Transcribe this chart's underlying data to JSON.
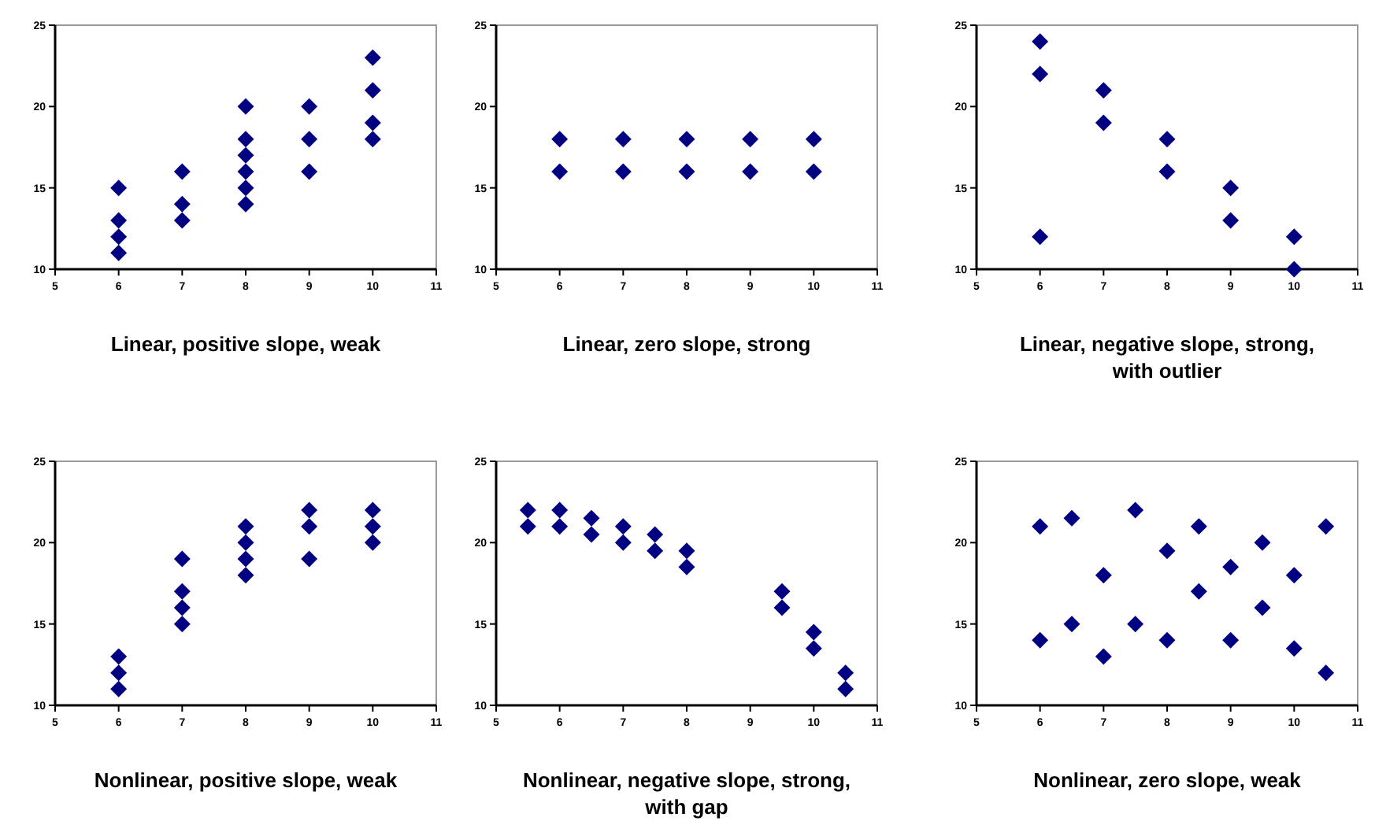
{
  "chart_data": [
    {
      "type": "scatter",
      "title": "Linear, positive slope, weak",
      "xlim": [
        5,
        11
      ],
      "xticks": [
        5,
        6,
        7,
        8,
        9,
        10,
        11
      ],
      "ylim": [
        10,
        25
      ],
      "yticks": [
        10,
        15,
        20,
        25
      ],
      "marker": "diamond",
      "series": [
        {
          "color": "#000080",
          "x": [
            6,
            6,
            6,
            6,
            7,
            7,
            7,
            8,
            8,
            8,
            8,
            8,
            8,
            9,
            9,
            9,
            10,
            10,
            10,
            10
          ],
          "values": [
            15,
            13,
            12,
            11,
            16,
            14,
            13,
            20,
            18,
            17,
            16,
            15,
            14,
            20,
            18,
            16,
            23,
            21,
            19,
            18
          ]
        }
      ]
    },
    {
      "type": "scatter",
      "title": "Linear, zero slope, strong",
      "xlim": [
        5,
        11
      ],
      "xticks": [
        5,
        6,
        7,
        8,
        9,
        10,
        11
      ],
      "ylim": [
        10,
        25
      ],
      "yticks": [
        10,
        15,
        20,
        25
      ],
      "marker": "diamond",
      "series": [
        {
          "color": "#000080",
          "x": [
            6,
            6,
            7,
            7,
            8,
            8,
            9,
            9,
            10,
            10
          ],
          "values": [
            18,
            16,
            18,
            16,
            18,
            16,
            18,
            16,
            18,
            16
          ]
        }
      ]
    },
    {
      "type": "scatter",
      "title": "Linear, negative slope, strong, with outlier",
      "xlim": [
        5,
        11
      ],
      "xticks": [
        5,
        6,
        7,
        8,
        9,
        10,
        11
      ],
      "ylim": [
        10,
        25
      ],
      "yticks": [
        10,
        15,
        20,
        25
      ],
      "marker": "diamond",
      "series": [
        {
          "color": "#000080",
          "x": [
            6,
            6,
            6,
            7,
            7,
            8,
            8,
            9,
            9,
            10,
            10
          ],
          "values": [
            24,
            22,
            12,
            21,
            19,
            18,
            16,
            15,
            13,
            12,
            10
          ]
        }
      ]
    },
    {
      "type": "scatter",
      "title": "Nonlinear, positive slope, weak",
      "xlim": [
        5,
        11
      ],
      "xticks": [
        5,
        6,
        7,
        8,
        9,
        10,
        11
      ],
      "ylim": [
        10,
        25
      ],
      "yticks": [
        10,
        15,
        20,
        25
      ],
      "marker": "diamond",
      "series": [
        {
          "color": "#000080",
          "x": [
            6,
            6,
            6,
            7,
            7,
            7,
            7,
            8,
            8,
            8,
            8,
            9,
            9,
            9,
            10,
            10,
            10
          ],
          "values": [
            13,
            12,
            11,
            19,
            17,
            16,
            15,
            21,
            20,
            19,
            18,
            22,
            21,
            19,
            22,
            21,
            20
          ]
        }
      ]
    },
    {
      "type": "scatter",
      "title": "Nonlinear, negative slope, strong, with gap",
      "xlim": [
        5,
        11
      ],
      "xticks": [
        5,
        6,
        7,
        8,
        9,
        10,
        11
      ],
      "ylim": [
        10,
        25
      ],
      "yticks": [
        10,
        15,
        20,
        25
      ],
      "marker": "diamond",
      "series": [
        {
          "color": "#000080",
          "x": [
            5.5,
            5.5,
            6,
            6,
            6.5,
            6.5,
            7,
            7,
            7.5,
            7.5,
            8,
            8,
            9.5,
            9.5,
            10,
            10,
            10.5,
            10.5
          ],
          "values": [
            22,
            21,
            22,
            21,
            21.5,
            20.5,
            21,
            20,
            20.5,
            19.5,
            19.5,
            18.5,
            17,
            16,
            14.5,
            13.5,
            12,
            11
          ]
        }
      ]
    },
    {
      "type": "scatter",
      "title": "Nonlinear, zero slope, weak",
      "xlim": [
        5,
        11
      ],
      "xticks": [
        5,
        6,
        7,
        8,
        9,
        10,
        11
      ],
      "ylim": [
        10,
        25
      ],
      "yticks": [
        10,
        15,
        20,
        25
      ],
      "marker": "diamond",
      "series": [
        {
          "color": "#000080",
          "x": [
            6,
            6,
            6.5,
            6.5,
            7,
            7,
            7.5,
            7.5,
            8,
            8,
            8.5,
            8.5,
            9,
            9,
            9.5,
            9.5,
            10,
            10,
            10.5,
            10.5
          ],
          "values": [
            21,
            14,
            21.5,
            15,
            18,
            13,
            22,
            15,
            19.5,
            14,
            21,
            17,
            18.5,
            14,
            20,
            16,
            18,
            13.5,
            21,
            12
          ]
        }
      ]
    }
  ]
}
